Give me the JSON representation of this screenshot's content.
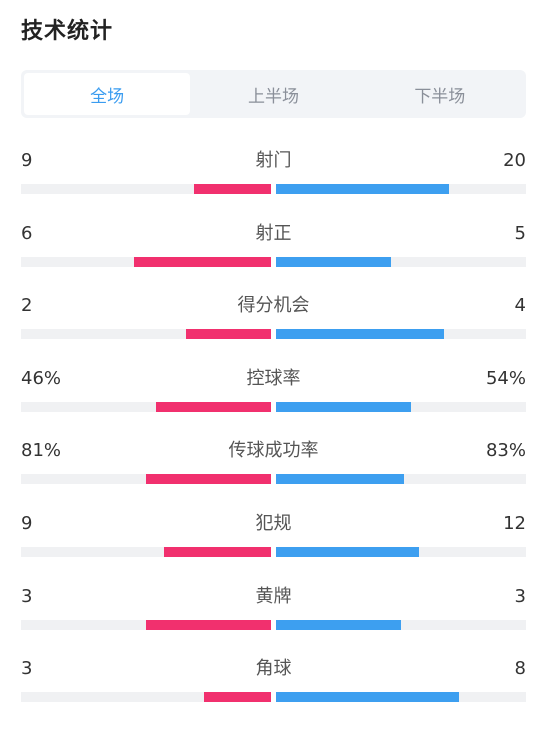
{
  "title": "技术统计",
  "tabs": [
    {
      "label": "全场",
      "active": true
    },
    {
      "label": "上半场",
      "active": false
    },
    {
      "label": "下半场",
      "active": false
    }
  ],
  "colors": {
    "home_bar": "#f1306e",
    "away_bar": "#3d9ff0",
    "track": "#f0f1f3",
    "active_tab": "#3a9cf0"
  },
  "stats": [
    {
      "label": "射门",
      "home": "9",
      "away": "20",
      "home_ratio": 0.31,
      "away_ratio": 0.69
    },
    {
      "label": "射正",
      "home": "6",
      "away": "5",
      "home_ratio": 0.55,
      "away_ratio": 0.46
    },
    {
      "label": "得分机会",
      "home": "2",
      "away": "4",
      "home_ratio": 0.34,
      "away_ratio": 0.67
    },
    {
      "label": "控球率",
      "home": "46%",
      "away": "54%",
      "home_ratio": 0.46,
      "away_ratio": 0.54
    },
    {
      "label": "传球成功率",
      "home": "81%",
      "away": "83%",
      "home_ratio": 0.5,
      "away_ratio": 0.51
    },
    {
      "label": "犯规",
      "home": "9",
      "away": "12",
      "home_ratio": 0.43,
      "away_ratio": 0.57
    },
    {
      "label": "黄牌",
      "home": "3",
      "away": "3",
      "home_ratio": 0.5,
      "away_ratio": 0.5
    },
    {
      "label": "角球",
      "home": "3",
      "away": "8",
      "home_ratio": 0.27,
      "away_ratio": 0.73
    }
  ]
}
